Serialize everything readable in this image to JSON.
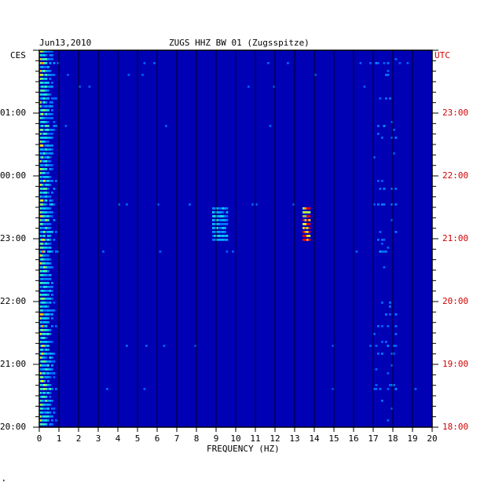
{
  "header": {
    "date": "Jun13,2010",
    "station": "ZUGS HHZ BW 01 (Zugsspitze)",
    "left_zone": "CES",
    "right_zone": "UTC"
  },
  "chart_data": {
    "type": "heatmap",
    "title": "ZUGS HHZ BW 01 (Zugsspitze)",
    "xlabel": "FREQUENCY (HZ)",
    "ylabel": "",
    "xlim": [
      0,
      20
    ],
    "x_ticks": [
      "0",
      "1",
      "2",
      "3",
      "4",
      "5",
      "6",
      "7",
      "8",
      "9",
      "10",
      "11",
      "12",
      "13",
      "14",
      "15",
      "16",
      "17",
      "18",
      "19",
      "20"
    ],
    "left_time_labels": [
      "01:00",
      "00:00",
      "23:00",
      "22:00",
      "21:00",
      "20:00"
    ],
    "right_time_labels": [
      "23:00",
      "22:00",
      "21:00",
      "20:00",
      "19:00",
      "18:00"
    ],
    "colors": {
      "background": "#0000b4",
      "low": "#0000ff",
      "mid": "#00c8ff",
      "high": "#ffff00",
      "peak": "#ff0000",
      "utc_label": "#d40000"
    },
    "features": [
      {
        "label": "strong low-frequency energy",
        "freq_range_hz": [
          0,
          1
        ]
      },
      {
        "label": "narrow-band signal",
        "freq_hz": 13.6,
        "time_utc": "~21:15"
      },
      {
        "label": "band near 9 Hz",
        "freq_hz": 9.2,
        "time_utc": "~21:15"
      },
      {
        "label": "band near 17.5 Hz",
        "freq_range_hz": [
          17,
          18
        ]
      }
    ]
  }
}
